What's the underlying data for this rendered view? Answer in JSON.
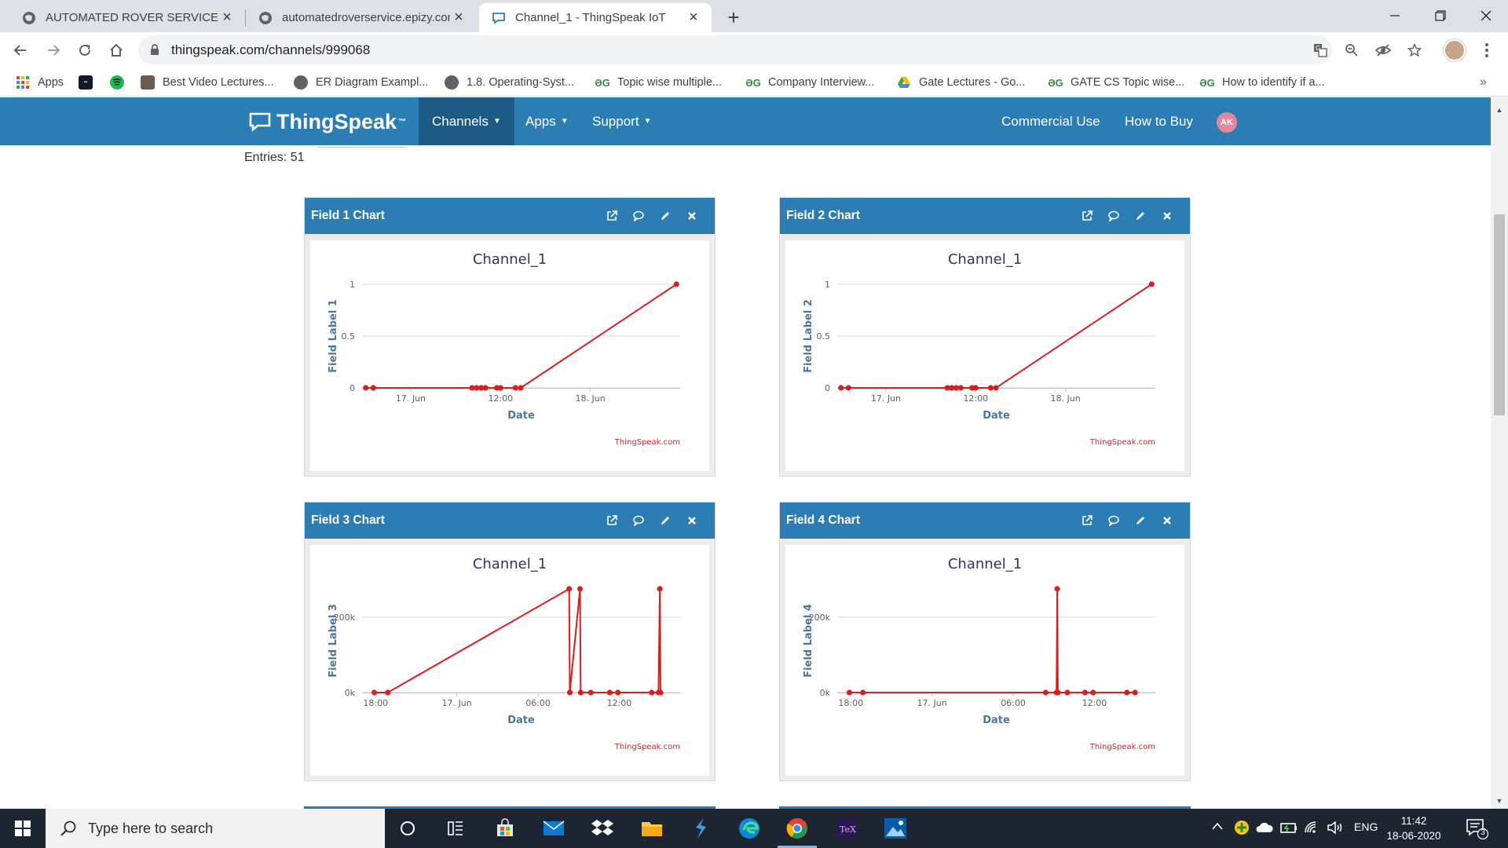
{
  "browser": {
    "tabs": [
      {
        "title": "AUTOMATED ROVER SERVICE",
        "active": false
      },
      {
        "title": "automatedroverservice.epizy.com",
        "active": false
      },
      {
        "title": "Channel_1 - ThingSpeak IoT",
        "active": true
      }
    ],
    "url": "thingspeak.com/channels/999068",
    "bookmarks": [
      "Apps",
      "Best Video Lectures...",
      "ER Diagram Exampl...",
      "1.8. Operating-Syst...",
      "Topic wise multiple...",
      "Company Interview...",
      "Gate Lectures - Go...",
      "GATE CS Topic wise...",
      "How to identify if a..."
    ],
    "overflow_label": "»"
  },
  "site": {
    "brand": "ThingSpeak",
    "brand_mark": "™",
    "nav": {
      "channels": "Channels",
      "apps": "Apps",
      "support": "Support",
      "commercial": "Commercial Use",
      "buy": "How to Buy",
      "avatar": "AK"
    },
    "accent": "#2d7db5"
  },
  "channel": {
    "entries": "Entries: 51"
  },
  "widgets": [
    {
      "title": "Field 1 Chart"
    },
    {
      "title": "Field 2 Chart"
    },
    {
      "title": "Field 3 Chart"
    },
    {
      "title": "Field 4 Chart"
    }
  ],
  "chart_data": [
    {
      "type": "line",
      "title": "Channel_1",
      "xlabel": "Date",
      "ylabel": "Field Label 1",
      "credit": "ThingSpeak.com",
      "color": "#d62020",
      "ylim": [
        0,
        1
      ],
      "yticks": [
        "0",
        "0.5",
        "1"
      ],
      "ytick_values": [
        0,
        0.5,
        1
      ],
      "xticks": [
        "17. Jun",
        "12:00",
        "18. Jun"
      ],
      "xtick_values": [
        24,
        36,
        48
      ],
      "xlim": [
        17.5,
        60
      ],
      "x_unit": "hours",
      "x": [
        18.0,
        19.0,
        32.2,
        32.8,
        33.4,
        34.0,
        35.5,
        36.0,
        38.0,
        38.7,
        59.5
      ],
      "y": [
        0,
        0,
        0,
        0,
        0,
        0,
        0,
        0,
        0,
        0,
        1
      ]
    },
    {
      "type": "line",
      "title": "Channel_1",
      "xlabel": "Date",
      "ylabel": "Field Label 2",
      "credit": "ThingSpeak.com",
      "color": "#d62020",
      "ylim": [
        0,
        1
      ],
      "yticks": [
        "0",
        "0.5",
        "1"
      ],
      "ytick_values": [
        0,
        0.5,
        1
      ],
      "xticks": [
        "17. Jun",
        "12:00",
        "18. Jun"
      ],
      "xtick_values": [
        24,
        36,
        48
      ],
      "xlim": [
        17.5,
        60
      ],
      "x_unit": "hours",
      "x": [
        18.0,
        19.0,
        32.2,
        32.8,
        33.4,
        34.0,
        35.5,
        36.0,
        38.0,
        38.7,
        59.5
      ],
      "y": [
        0,
        0,
        0,
        0,
        0,
        0,
        0,
        0,
        0,
        0,
        1
      ]
    },
    {
      "type": "line",
      "title": "Channel_1",
      "xlabel": "Date",
      "ylabel": "Field Label 3",
      "credit": "ThingSpeak.com",
      "color": "#d62020",
      "ylim": [
        0,
        275000
      ],
      "yticks": [
        "0k",
        "200k"
      ],
      "ytick_values": [
        0,
        200000
      ],
      "xticks": [
        "18:00",
        "17. Jun",
        "06:00",
        "12:00"
      ],
      "xtick_values": [
        18,
        24,
        30,
        36
      ],
      "xlim": [
        17,
        40.5
      ],
      "x_unit": "hours",
      "x": [
        17.9,
        18.9,
        32.3,
        32.35,
        33.1,
        33.15,
        33.9,
        35.3,
        35.9,
        38.4,
        38.9,
        39.0,
        39.05
      ],
      "y": [
        0,
        0,
        275000,
        0,
        275000,
        0,
        0,
        0,
        0,
        0,
        0,
        275000,
        0
      ]
    },
    {
      "type": "line",
      "title": "Channel_1",
      "xlabel": "Date",
      "ylabel": "Field Label 4",
      "credit": "ThingSpeak.com",
      "color": "#d62020",
      "ylim": [
        0,
        275000
      ],
      "yticks": [
        "0k",
        "200k"
      ],
      "ytick_values": [
        0,
        200000
      ],
      "xticks": [
        "18:00",
        "17. Jun",
        "06:00",
        "12:00"
      ],
      "xtick_values": [
        18,
        24,
        30,
        36
      ],
      "xlim": [
        17,
        40.5
      ],
      "x_unit": "hours",
      "x": [
        17.9,
        18.9,
        32.4,
        33.2,
        33.25,
        33.3,
        34.0,
        35.3,
        35.9,
        38.4,
        39.0
      ],
      "y": [
        0,
        0,
        0,
        0,
        275000,
        0,
        0,
        0,
        0,
        0,
        0
      ]
    }
  ],
  "taskbar": {
    "search_placeholder": "Type here to search",
    "language": "ENG",
    "time": "11:42",
    "date": "18-06-2020",
    "notifications": "3"
  }
}
